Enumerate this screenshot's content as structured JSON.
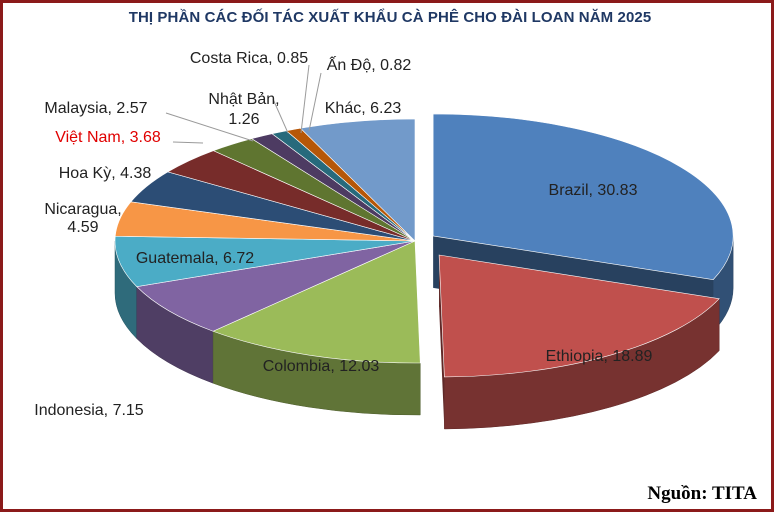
{
  "chart_data": {
    "type": "pie",
    "title": "THỊ PHẦN CÁC ĐỐI TÁC XUẤT KHẨU CÀ PHÊ CHO ĐÀI LOAN NĂM 2025",
    "source": "Nguồn: TITA",
    "highlight": "Việt Nam",
    "slices": [
      {
        "label": "Brazil",
        "value": 30.83,
        "color": "#4f81bd",
        "text": "Brazil, 30.83"
      },
      {
        "label": "Ethiopia",
        "value": 18.89,
        "color": "#c0504d",
        "text": "Ethiopia, 18.89"
      },
      {
        "label": "Colombia",
        "value": 12.03,
        "color": "#9bbb59",
        "text": "Colombia, 12.03"
      },
      {
        "label": "Indonesia",
        "value": 7.15,
        "color": "#8064a2",
        "text": "Indonesia, 7.15"
      },
      {
        "label": "Guatemala",
        "value": 6.72,
        "color": "#4bacc6",
        "text": "Guatemala, 6.72"
      },
      {
        "label": "Nicaragua",
        "value": 4.59,
        "color": "#f79646",
        "text": [
          "Nicaragua,",
          "4.59"
        ]
      },
      {
        "label": "Hoa Kỳ",
        "value": 4.38,
        "color": "#2c4d75",
        "text": "Hoa Kỳ, 4.38"
      },
      {
        "label": "Việt Nam",
        "value": 3.68,
        "color": "#772c2a",
        "text": "Việt Nam, 3.68"
      },
      {
        "label": "Malaysia",
        "value": 2.57,
        "color": "#5f7530",
        "text": "Malaysia, 2.57"
      },
      {
        "label": "Nhật Bản",
        "value": 1.26,
        "color": "#4d3b62",
        "text": [
          "Nhật Bản,",
          "1.26"
        ]
      },
      {
        "label": "Costa Rica",
        "value": 0.85,
        "color": "#276a7c",
        "text": "Costa Rica, 0.85"
      },
      {
        "label": "Ấn Độ",
        "value": 0.82,
        "color": "#b65708",
        "text": "Ấn Độ, 0.82"
      },
      {
        "label": "Khác",
        "value": 6.23,
        "color": "#729aca",
        "text": "Khác, 6.23"
      }
    ]
  }
}
